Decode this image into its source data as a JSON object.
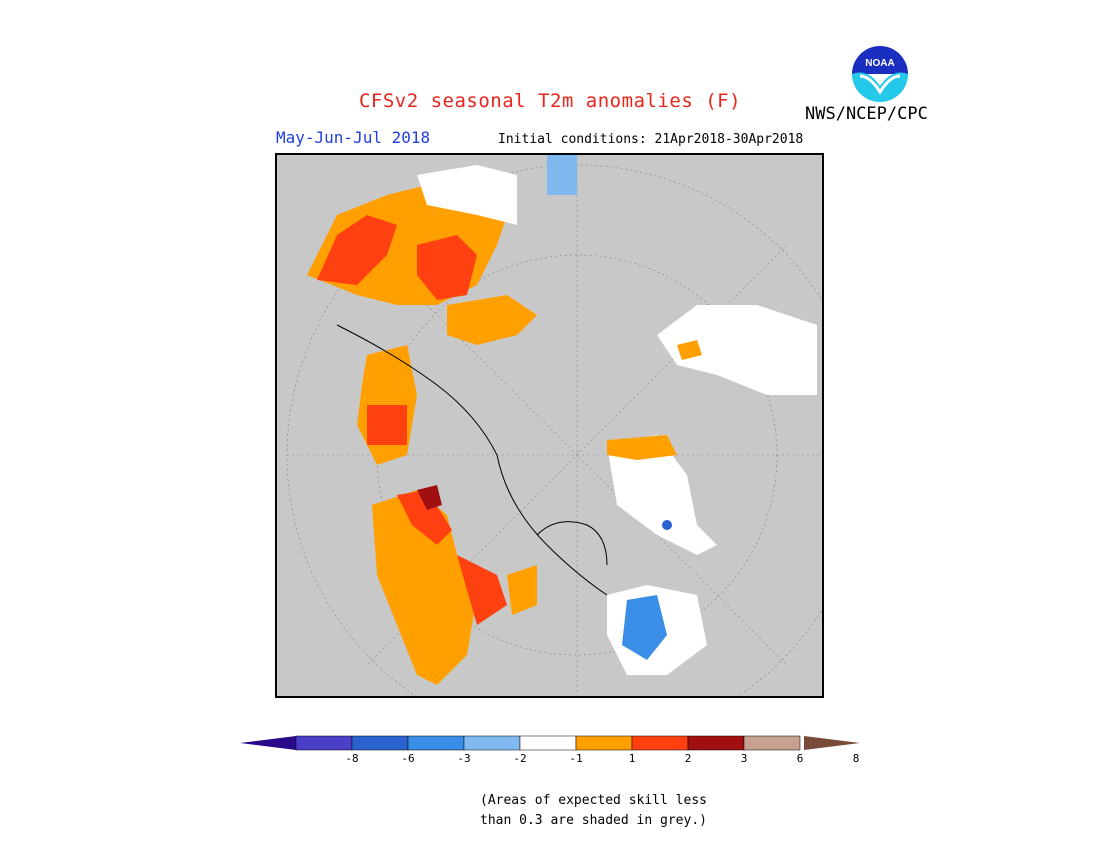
{
  "title": "CFSv2 seasonal T2m anomalies (F)",
  "org": "NWS/NCEP/CPC",
  "logo_text": "NOAA",
  "period": "May-Jun-Jul 2018",
  "initial_conditions": "Initial conditions: 21Apr2018-30Apr2018",
  "colorbar": {
    "colors": [
      "#2b0a8a",
      "#4b3ec8",
      "#2a62d0",
      "#3b8ee8",
      "#80b8f0",
      "#ffffff",
      "#ffa000",
      "#ff4010",
      "#a01010",
      "#c8a090",
      "#7a4a38"
    ],
    "labels": [
      "-8",
      "-6",
      "-3",
      "-2",
      "-1",
      "1",
      "2",
      "3",
      "6",
      "8"
    ]
  },
  "note_line1": "(Areas of expected skill less",
  "note_line2": "than 0.3 are shaded in grey.)",
  "map": {
    "projection": "polar stereographic (north pole)",
    "background": "#c8c8c8",
    "regions": [
      {
        "name": "europe-north",
        "color": "#ffa000"
      },
      {
        "name": "scandinavia",
        "color": "#ff4010"
      },
      {
        "name": "siberia",
        "color": "#ffffff"
      },
      {
        "name": "alaska",
        "color": "#ffa000"
      },
      {
        "name": "greenland",
        "color": "#ffffff"
      },
      {
        "name": "canada-east",
        "color": "#3b8ee8"
      }
    ]
  }
}
